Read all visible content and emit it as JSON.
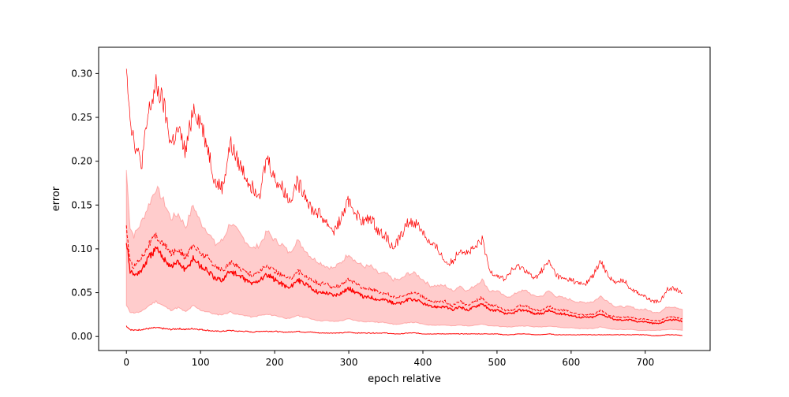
{
  "chart_data": {
    "type": "line",
    "title": "",
    "xlabel": "epoch relative",
    "ylabel": "error",
    "xlim": [
      -37.5,
      787.5
    ],
    "ylim": [
      -0.016,
      0.33
    ],
    "grid": false,
    "x_ticks": [
      0,
      100,
      200,
      300,
      400,
      500,
      600,
      700
    ],
    "y_ticks": [
      0.0,
      0.05,
      0.1,
      0.15,
      0.2,
      0.25,
      0.3
    ],
    "x_tick_labels": [
      "0",
      "100",
      "200",
      "300",
      "400",
      "500",
      "600",
      "700"
    ],
    "y_tick_labels": [
      "0.00",
      "0.05",
      "0.10",
      "0.15",
      "0.20",
      "0.25",
      "0.30"
    ],
    "color": "#ff0000",
    "band_color": "#ff0000",
    "x": [
      0,
      5,
      10,
      20,
      30,
      40,
      50,
      60,
      70,
      80,
      90,
      100,
      110,
      120,
      130,
      140,
      150,
      160,
      170,
      180,
      190,
      200,
      210,
      220,
      230,
      240,
      250,
      260,
      270,
      280,
      290,
      300,
      310,
      320,
      330,
      340,
      350,
      360,
      370,
      380,
      390,
      400,
      410,
      420,
      430,
      440,
      450,
      460,
      470,
      480,
      490,
      500,
      510,
      520,
      530,
      540,
      550,
      560,
      570,
      580,
      590,
      600,
      610,
      620,
      630,
      640,
      650,
      660,
      670,
      680,
      690,
      700,
      710,
      720,
      730,
      740,
      750
    ],
    "series": [
      {
        "role": "max",
        "style": "solid",
        "values": [
          0.315,
          0.25,
          0.225,
          0.195,
          0.255,
          0.285,
          0.265,
          0.22,
          0.235,
          0.21,
          0.262,
          0.245,
          0.215,
          0.175,
          0.17,
          0.22,
          0.2,
          0.185,
          0.17,
          0.165,
          0.205,
          0.18,
          0.17,
          0.155,
          0.175,
          0.165,
          0.145,
          0.14,
          0.13,
          0.12,
          0.135,
          0.155,
          0.14,
          0.13,
          0.135,
          0.12,
          0.115,
          0.1,
          0.115,
          0.13,
          0.13,
          0.12,
          0.105,
          0.1,
          0.085,
          0.085,
          0.1,
          0.095,
          0.1,
          0.11,
          0.075,
          0.07,
          0.065,
          0.075,
          0.08,
          0.075,
          0.065,
          0.075,
          0.085,
          0.07,
          0.065,
          0.065,
          0.06,
          0.06,
          0.07,
          0.085,
          0.07,
          0.06,
          0.065,
          0.055,
          0.05,
          0.045,
          0.04,
          0.04,
          0.055,
          0.055,
          0.05
        ]
      },
      {
        "role": "upper",
        "style": "dashed",
        "values": [
          0.125,
          0.085,
          0.08,
          0.09,
          0.105,
          0.115,
          0.105,
          0.095,
          0.1,
          0.09,
          0.105,
          0.095,
          0.09,
          0.08,
          0.075,
          0.085,
          0.08,
          0.075,
          0.07,
          0.075,
          0.08,
          0.075,
          0.07,
          0.065,
          0.075,
          0.07,
          0.065,
          0.06,
          0.06,
          0.055,
          0.06,
          0.065,
          0.06,
          0.055,
          0.055,
          0.05,
          0.05,
          0.045,
          0.045,
          0.05,
          0.05,
          0.045,
          0.04,
          0.04,
          0.04,
          0.035,
          0.04,
          0.035,
          0.04,
          0.045,
          0.035,
          0.035,
          0.03,
          0.03,
          0.035,
          0.035,
          0.03,
          0.03,
          0.035,
          0.03,
          0.03,
          0.028,
          0.025,
          0.025,
          0.025,
          0.03,
          0.025,
          0.022,
          0.022,
          0.022,
          0.02,
          0.02,
          0.018,
          0.018,
          0.022,
          0.022,
          0.02
        ]
      },
      {
        "role": "mean",
        "style": "solid",
        "values": [
          0.11,
          0.075,
          0.07,
          0.075,
          0.09,
          0.1,
          0.09,
          0.08,
          0.085,
          0.075,
          0.09,
          0.08,
          0.075,
          0.065,
          0.065,
          0.075,
          0.07,
          0.065,
          0.06,
          0.065,
          0.07,
          0.065,
          0.06,
          0.055,
          0.065,
          0.06,
          0.055,
          0.05,
          0.05,
          0.047,
          0.05,
          0.055,
          0.05,
          0.045,
          0.045,
          0.042,
          0.042,
          0.038,
          0.038,
          0.042,
          0.042,
          0.038,
          0.034,
          0.034,
          0.034,
          0.03,
          0.034,
          0.03,
          0.034,
          0.038,
          0.03,
          0.03,
          0.026,
          0.026,
          0.03,
          0.03,
          0.026,
          0.026,
          0.03,
          0.026,
          0.026,
          0.024,
          0.022,
          0.022,
          0.022,
          0.026,
          0.022,
          0.019,
          0.019,
          0.019,
          0.017,
          0.017,
          0.015,
          0.015,
          0.019,
          0.019,
          0.017
        ]
      },
      {
        "role": "min",
        "style": "solid",
        "values": [
          0.012,
          0.008,
          0.007,
          0.008,
          0.009,
          0.01,
          0.009,
          0.008,
          0.009,
          0.008,
          0.009,
          0.008,
          0.007,
          0.006,
          0.006,
          0.007,
          0.006,
          0.006,
          0.005,
          0.006,
          0.006,
          0.006,
          0.005,
          0.005,
          0.006,
          0.005,
          0.005,
          0.004,
          0.004,
          0.004,
          0.004,
          0.005,
          0.004,
          0.004,
          0.004,
          0.004,
          0.004,
          0.003,
          0.003,
          0.004,
          0.004,
          0.003,
          0.003,
          0.003,
          0.003,
          0.003,
          0.003,
          0.003,
          0.003,
          0.003,
          0.003,
          0.003,
          0.002,
          0.002,
          0.003,
          0.003,
          0.002,
          0.002,
          0.003,
          0.002,
          0.002,
          0.002,
          0.002,
          0.002,
          0.002,
          0.002,
          0.002,
          0.002,
          0.002,
          0.002,
          0.002,
          0.002,
          0.001,
          0.001,
          0.002,
          0.002,
          0.001
        ]
      }
    ],
    "band": {
      "upper": [
        0.19,
        0.125,
        0.115,
        0.13,
        0.15,
        0.17,
        0.155,
        0.135,
        0.14,
        0.125,
        0.15,
        0.13,
        0.12,
        0.105,
        0.11,
        0.13,
        0.12,
        0.11,
        0.1,
        0.105,
        0.12,
        0.11,
        0.105,
        0.095,
        0.11,
        0.1,
        0.09,
        0.085,
        0.08,
        0.078,
        0.085,
        0.095,
        0.085,
        0.08,
        0.08,
        0.072,
        0.072,
        0.065,
        0.065,
        0.072,
        0.072,
        0.065,
        0.058,
        0.058,
        0.058,
        0.052,
        0.058,
        0.052,
        0.058,
        0.065,
        0.052,
        0.052,
        0.046,
        0.046,
        0.052,
        0.052,
        0.046,
        0.046,
        0.052,
        0.046,
        0.044,
        0.042,
        0.039,
        0.039,
        0.04,
        0.046,
        0.04,
        0.034,
        0.034,
        0.034,
        0.031,
        0.031,
        0.028,
        0.028,
        0.034,
        0.034,
        0.031
      ],
      "lower": [
        0.035,
        0.028,
        0.027,
        0.028,
        0.035,
        0.04,
        0.035,
        0.03,
        0.033,
        0.028,
        0.035,
        0.03,
        0.028,
        0.025,
        0.025,
        0.028,
        0.025,
        0.024,
        0.022,
        0.024,
        0.025,
        0.024,
        0.022,
        0.02,
        0.024,
        0.022,
        0.02,
        0.018,
        0.018,
        0.017,
        0.018,
        0.02,
        0.018,
        0.017,
        0.017,
        0.016,
        0.016,
        0.014,
        0.014,
        0.016,
        0.016,
        0.014,
        0.013,
        0.013,
        0.013,
        0.012,
        0.013,
        0.012,
        0.013,
        0.014,
        0.012,
        0.012,
        0.011,
        0.011,
        0.012,
        0.012,
        0.011,
        0.011,
        0.012,
        0.011,
        0.01,
        0.01,
        0.009,
        0.009,
        0.009,
        0.011,
        0.009,
        0.008,
        0.008,
        0.008,
        0.007,
        0.007,
        0.007,
        0.007,
        0.008,
        0.008,
        0.007
      ]
    }
  }
}
